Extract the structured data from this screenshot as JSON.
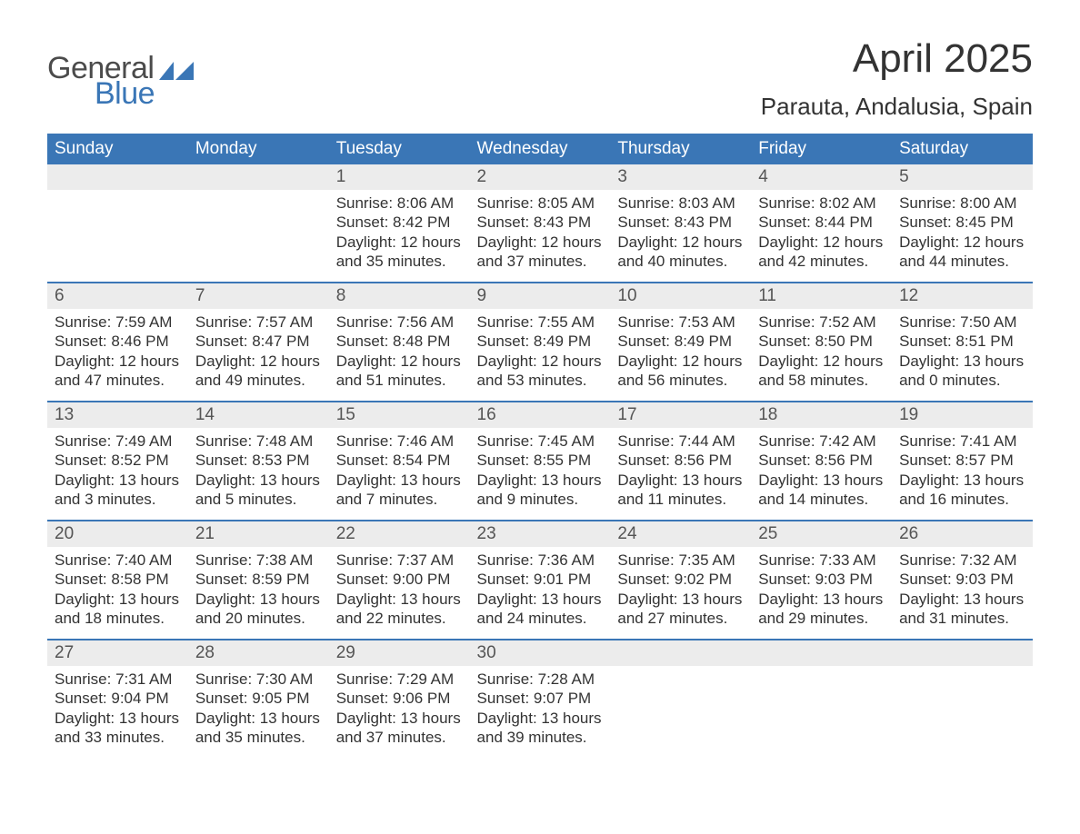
{
  "logo": {
    "line1": "General",
    "line2": "Blue",
    "accent_color": "#3a76b6",
    "text_color": "#4b4b4b"
  },
  "header": {
    "title": "April 2025",
    "location": "Parauta, Andalusia, Spain"
  },
  "theme": {
    "header_bg": "#3a76b6",
    "header_fg": "#ffffff",
    "daynum_bg": "#ececec",
    "week_divider": "#3a76b6",
    "body_text": "#333333",
    "background": "#ffffff",
    "font_family": "Arial",
    "title_fontsize_pt": 33,
    "location_fontsize_pt": 20,
    "dayhead_fontsize_pt": 14,
    "body_fontsize_pt": 13
  },
  "day_headers": [
    "Sunday",
    "Monday",
    "Tuesday",
    "Wednesday",
    "Thursday",
    "Friday",
    "Saturday"
  ],
  "weeks": [
    [
      {
        "n": "",
        "sr": "",
        "ss": "",
        "dl1": "",
        "dl2": ""
      },
      {
        "n": "",
        "sr": "",
        "ss": "",
        "dl1": "",
        "dl2": ""
      },
      {
        "n": "1",
        "sr": "Sunrise: 8:06 AM",
        "ss": "Sunset: 8:42 PM",
        "dl1": "Daylight: 12 hours",
        "dl2": "and 35 minutes."
      },
      {
        "n": "2",
        "sr": "Sunrise: 8:05 AM",
        "ss": "Sunset: 8:43 PM",
        "dl1": "Daylight: 12 hours",
        "dl2": "and 37 minutes."
      },
      {
        "n": "3",
        "sr": "Sunrise: 8:03 AM",
        "ss": "Sunset: 8:43 PM",
        "dl1": "Daylight: 12 hours",
        "dl2": "and 40 minutes."
      },
      {
        "n": "4",
        "sr": "Sunrise: 8:02 AM",
        "ss": "Sunset: 8:44 PM",
        "dl1": "Daylight: 12 hours",
        "dl2": "and 42 minutes."
      },
      {
        "n": "5",
        "sr": "Sunrise: 8:00 AM",
        "ss": "Sunset: 8:45 PM",
        "dl1": "Daylight: 12 hours",
        "dl2": "and 44 minutes."
      }
    ],
    [
      {
        "n": "6",
        "sr": "Sunrise: 7:59 AM",
        "ss": "Sunset: 8:46 PM",
        "dl1": "Daylight: 12 hours",
        "dl2": "and 47 minutes."
      },
      {
        "n": "7",
        "sr": "Sunrise: 7:57 AM",
        "ss": "Sunset: 8:47 PM",
        "dl1": "Daylight: 12 hours",
        "dl2": "and 49 minutes."
      },
      {
        "n": "8",
        "sr": "Sunrise: 7:56 AM",
        "ss": "Sunset: 8:48 PM",
        "dl1": "Daylight: 12 hours",
        "dl2": "and 51 minutes."
      },
      {
        "n": "9",
        "sr": "Sunrise: 7:55 AM",
        "ss": "Sunset: 8:49 PM",
        "dl1": "Daylight: 12 hours",
        "dl2": "and 53 minutes."
      },
      {
        "n": "10",
        "sr": "Sunrise: 7:53 AM",
        "ss": "Sunset: 8:49 PM",
        "dl1": "Daylight: 12 hours",
        "dl2": "and 56 minutes."
      },
      {
        "n": "11",
        "sr": "Sunrise: 7:52 AM",
        "ss": "Sunset: 8:50 PM",
        "dl1": "Daylight: 12 hours",
        "dl2": "and 58 minutes."
      },
      {
        "n": "12",
        "sr": "Sunrise: 7:50 AM",
        "ss": "Sunset: 8:51 PM",
        "dl1": "Daylight: 13 hours",
        "dl2": "and 0 minutes."
      }
    ],
    [
      {
        "n": "13",
        "sr": "Sunrise: 7:49 AM",
        "ss": "Sunset: 8:52 PM",
        "dl1": "Daylight: 13 hours",
        "dl2": "and 3 minutes."
      },
      {
        "n": "14",
        "sr": "Sunrise: 7:48 AM",
        "ss": "Sunset: 8:53 PM",
        "dl1": "Daylight: 13 hours",
        "dl2": "and 5 minutes."
      },
      {
        "n": "15",
        "sr": "Sunrise: 7:46 AM",
        "ss": "Sunset: 8:54 PM",
        "dl1": "Daylight: 13 hours",
        "dl2": "and 7 minutes."
      },
      {
        "n": "16",
        "sr": "Sunrise: 7:45 AM",
        "ss": "Sunset: 8:55 PM",
        "dl1": "Daylight: 13 hours",
        "dl2": "and 9 minutes."
      },
      {
        "n": "17",
        "sr": "Sunrise: 7:44 AM",
        "ss": "Sunset: 8:56 PM",
        "dl1": "Daylight: 13 hours",
        "dl2": "and 11 minutes."
      },
      {
        "n": "18",
        "sr": "Sunrise: 7:42 AM",
        "ss": "Sunset: 8:56 PM",
        "dl1": "Daylight: 13 hours",
        "dl2": "and 14 minutes."
      },
      {
        "n": "19",
        "sr": "Sunrise: 7:41 AM",
        "ss": "Sunset: 8:57 PM",
        "dl1": "Daylight: 13 hours",
        "dl2": "and 16 minutes."
      }
    ],
    [
      {
        "n": "20",
        "sr": "Sunrise: 7:40 AM",
        "ss": "Sunset: 8:58 PM",
        "dl1": "Daylight: 13 hours",
        "dl2": "and 18 minutes."
      },
      {
        "n": "21",
        "sr": "Sunrise: 7:38 AM",
        "ss": "Sunset: 8:59 PM",
        "dl1": "Daylight: 13 hours",
        "dl2": "and 20 minutes."
      },
      {
        "n": "22",
        "sr": "Sunrise: 7:37 AM",
        "ss": "Sunset: 9:00 PM",
        "dl1": "Daylight: 13 hours",
        "dl2": "and 22 minutes."
      },
      {
        "n": "23",
        "sr": "Sunrise: 7:36 AM",
        "ss": "Sunset: 9:01 PM",
        "dl1": "Daylight: 13 hours",
        "dl2": "and 24 minutes."
      },
      {
        "n": "24",
        "sr": "Sunrise: 7:35 AM",
        "ss": "Sunset: 9:02 PM",
        "dl1": "Daylight: 13 hours",
        "dl2": "and 27 minutes."
      },
      {
        "n": "25",
        "sr": "Sunrise: 7:33 AM",
        "ss": "Sunset: 9:03 PM",
        "dl1": "Daylight: 13 hours",
        "dl2": "and 29 minutes."
      },
      {
        "n": "26",
        "sr": "Sunrise: 7:32 AM",
        "ss": "Sunset: 9:03 PM",
        "dl1": "Daylight: 13 hours",
        "dl2": "and 31 minutes."
      }
    ],
    [
      {
        "n": "27",
        "sr": "Sunrise: 7:31 AM",
        "ss": "Sunset: 9:04 PM",
        "dl1": "Daylight: 13 hours",
        "dl2": "and 33 minutes."
      },
      {
        "n": "28",
        "sr": "Sunrise: 7:30 AM",
        "ss": "Sunset: 9:05 PM",
        "dl1": "Daylight: 13 hours",
        "dl2": "and 35 minutes."
      },
      {
        "n": "29",
        "sr": "Sunrise: 7:29 AM",
        "ss": "Sunset: 9:06 PM",
        "dl1": "Daylight: 13 hours",
        "dl2": "and 37 minutes."
      },
      {
        "n": "30",
        "sr": "Sunrise: 7:28 AM",
        "ss": "Sunset: 9:07 PM",
        "dl1": "Daylight: 13 hours",
        "dl2": "and 39 minutes."
      },
      {
        "n": "",
        "sr": "",
        "ss": "",
        "dl1": "",
        "dl2": ""
      },
      {
        "n": "",
        "sr": "",
        "ss": "",
        "dl1": "",
        "dl2": ""
      },
      {
        "n": "",
        "sr": "",
        "ss": "",
        "dl1": "",
        "dl2": ""
      }
    ]
  ]
}
